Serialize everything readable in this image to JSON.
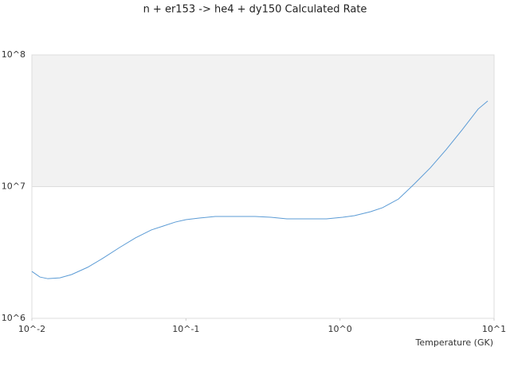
{
  "chart_data": {
    "type": "line",
    "title": "n + er153 -> he4 + dy150 Calculated Rate",
    "x_label": "Temperature (GK)",
    "xscale": "log",
    "yscale": "log",
    "xlim": [
      0.01,
      10
    ],
    "ylim": [
      1000000,
      100000000
    ],
    "xticks": [
      {
        "value": 0.01,
        "label": "10^-2"
      },
      {
        "value": 0.1,
        "label": "10^-1"
      },
      {
        "value": 1,
        "label": "10^0"
      },
      {
        "value": 10,
        "label": "10^1"
      }
    ],
    "yticks": [
      {
        "value": 1000000,
        "label": "10^6"
      },
      {
        "value": 10000000,
        "label": "10^7"
      },
      {
        "value": 100000000,
        "label": "10^8"
      }
    ],
    "band_color": "#f2f2f2",
    "series": [
      {
        "color": "#5b9bd5",
        "x": [
          0.01,
          0.01127,
          0.0127,
          0.0152,
          0.0181,
          0.023,
          0.0292,
          0.0371,
          0.047,
          0.0596,
          0.0713,
          0.0852,
          0.1,
          0.122,
          0.155,
          0.222,
          0.281,
          0.356,
          0.452,
          0.573,
          0.817,
          1.04,
          1.24,
          1.58,
          1.89,
          2.4,
          3.04,
          3.86,
          4.89,
          6.21,
          7.88,
          9.1
        ],
        "values": [
          2270000,
          2060000,
          2000000,
          2030000,
          2150000,
          2440000,
          2880000,
          3450000,
          4080000,
          4690000,
          5020000,
          5380000,
          5610000,
          5770000,
          5930000,
          5930000,
          5930000,
          5850000,
          5690000,
          5690000,
          5690000,
          5850000,
          6020000,
          6450000,
          6920000,
          8060000,
          10500000,
          13900000,
          19100000,
          27000000,
          38800000,
          44700000
        ]
      }
    ]
  }
}
